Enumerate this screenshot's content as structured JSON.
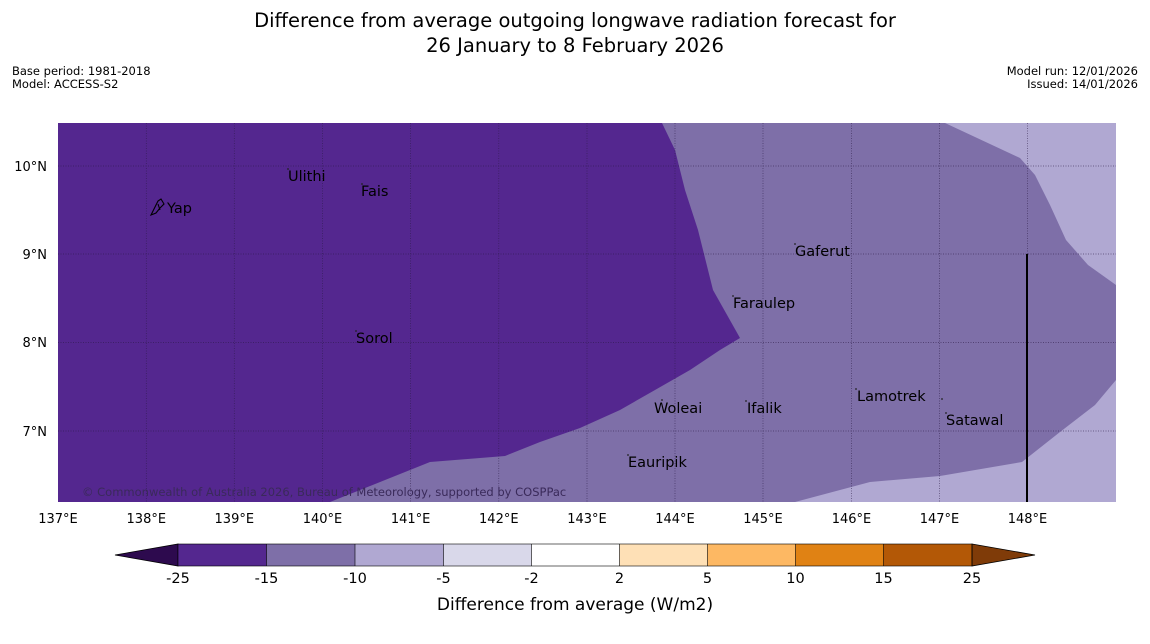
{
  "header": {
    "title_line1": "Difference from average outgoing longwave radiation forecast for",
    "title_line2": "26 January to 8 February 2026",
    "base_period": "Base period: 1981-2018",
    "model": "Model: ACCESS-S2",
    "model_run": "Model run: 12/01/2026",
    "issued": "Issued: 14/01/2026"
  },
  "map": {
    "x_ticks": [
      "137°E",
      "138°E",
      "139°E",
      "140°E",
      "141°E",
      "142°E",
      "143°E",
      "144°E",
      "145°E",
      "146°E",
      "147°E",
      "148°E"
    ],
    "y_ticks": [
      "10°N",
      "9°N",
      "8°N",
      "7°N"
    ],
    "places": {
      "ulithi": "Ulithi",
      "fais": "Fais",
      "yap": "Yap",
      "gaferut": "Gaferut",
      "faraulep": "Faraulep",
      "sorol": "Sorol",
      "lamotrek": "Lamotrek",
      "woleai": "Woleai",
      "ifalik": "Ifalik",
      "satawal": "Satawal",
      "eauripik": "Eauripik"
    },
    "copyright": "© Commonwealth of Australia 2026, Bureau of Meteorology, supported by COSPPac",
    "colors": {
      "below_minus25": "#2d0a4e",
      "minus25_minus15": "#54278f",
      "minus15_minus10": "#7e6fa8",
      "minus10_minus5": "#b0a8d2",
      "minus5_minus2": "#d9d8ea",
      "minus2_2": "#ffffff",
      "2_5": "#fee0b6",
      "5_10": "#fdb863",
      "10_15": "#e08214",
      "15_25": "#b35806",
      "above25": "#7f3b08"
    }
  },
  "colorbar": {
    "ticks": [
      "-25",
      "-15",
      "-10",
      "-5",
      "-2",
      "2",
      "5",
      "10",
      "15",
      "25"
    ],
    "label": "Difference from average (W/m2)"
  }
}
